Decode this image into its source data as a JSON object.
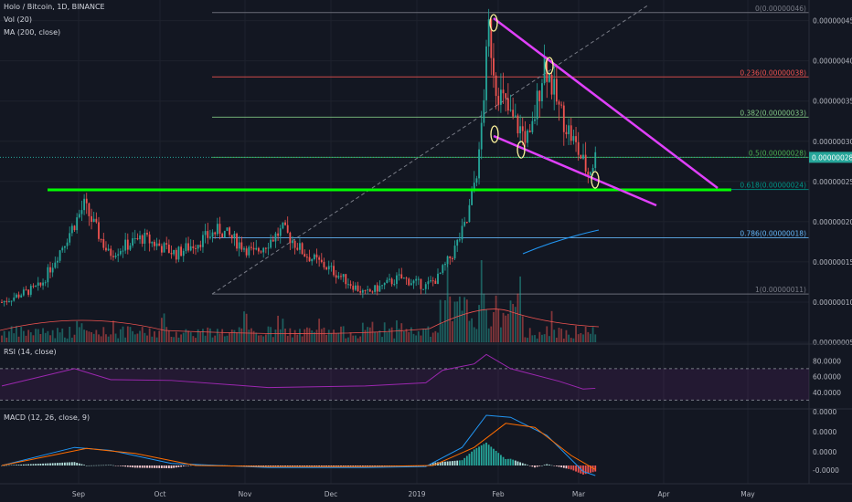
{
  "header": {
    "symbol": "Holo / Bitcoin, 1D, BINANCE",
    "vol": "Vol (20)",
    "ma": "MA (200, close)"
  },
  "rsi_header": "RSI (14, close)",
  "macd_header": "MACD (12, 26, close, 9)",
  "colors": {
    "background": "#131722",
    "up": "#26a69a",
    "down": "#ef5350",
    "fib_guide": "#00ff00",
    "trendline": "#e040fb",
    "rsi": "#9c27b0",
    "macd_line": "#2196f3",
    "signal_line": "#ff6d00",
    "ma": "#2196f3",
    "vol_ma": "#ef5350"
  },
  "chart_data": {
    "type": "candlestick",
    "x_axis": [
      "Sep",
      "Oct",
      "Nov",
      "Dec",
      "2019",
      "Feb",
      "Mar",
      "Apr",
      "May"
    ],
    "price_axis": [
      "0.00000045",
      "0.00000040",
      "0.00000035",
      "0.00000030",
      "0.00000025",
      "0.00000020",
      "0.00000015",
      "0.00000010",
      "0.00000005"
    ],
    "price_range": [
      5e-08,
      4.7e-07
    ],
    "last_price": "0.00000028",
    "fibonacci": [
      {
        "level": "0",
        "label": "0(0.00000046)",
        "price": 4.6e-07
      },
      {
        "level": "0.236",
        "label": "0.236(0.00000038)",
        "price": 3.8e-07
      },
      {
        "level": "0.382",
        "label": "0.382(0.00000033)",
        "price": 3.3e-07
      },
      {
        "level": "0.5",
        "label": "0.5(0.00000028)",
        "price": 2.8e-07
      },
      {
        "level": "0.618",
        "label": "0.618(0.00000024)",
        "price": 2.4e-07
      },
      {
        "level": "0.786",
        "label": "0.786(0.00000018)",
        "price": 1.8e-07
      },
      {
        "level": "1",
        "label": "1(0.00000011)",
        "price": 1.1e-07
      }
    ],
    "price_path": [
      [
        0,
        1e-07
      ],
      [
        16,
        1.2e-07
      ],
      [
        34,
        2.2e-07
      ],
      [
        44,
        1.6e-07
      ],
      [
        58,
        1.8e-07
      ],
      [
        72,
        1.6e-07
      ],
      [
        90,
        1.9e-07
      ],
      [
        104,
        1.6e-07
      ],
      [
        116,
        1.9e-07
      ],
      [
        125,
        1.6e-07
      ],
      [
        136,
        1.4e-07
      ],
      [
        150,
        1.1e-07
      ],
      [
        164,
        1.3e-07
      ],
      [
        175,
        1.2e-07
      ],
      [
        180,
        1.3e-07
      ],
      [
        186,
        1.6e-07
      ],
      [
        192,
        2e-07
      ],
      [
        197,
        2.8e-07
      ],
      [
        201,
        4.4e-07
      ],
      [
        204,
        3.7e-07
      ],
      [
        210,
        3.3e-07
      ],
      [
        218,
        3e-07
      ],
      [
        224,
        4e-07
      ],
      [
        230,
        3.4e-07
      ],
      [
        236,
        3e-07
      ],
      [
        242,
        2.6e-07
      ],
      [
        245,
        2.8e-07
      ]
    ],
    "volume": {
      "axis_max_label": "0.00000005",
      "series": "Vol (20)"
    },
    "rsi": {
      "axis": [
        "80.0000",
        "60.0000",
        "40.0000"
      ],
      "values": [
        [
          0,
          48
        ],
        [
          30,
          70
        ],
        [
          45,
          56
        ],
        [
          70,
          55
        ],
        [
          110,
          46
        ],
        [
          150,
          48
        ],
        [
          175,
          52
        ],
        [
          182,
          68
        ],
        [
          195,
          76
        ],
        [
          200,
          88
        ],
        [
          210,
          70
        ],
        [
          230,
          54
        ],
        [
          240,
          44
        ],
        [
          245,
          45
        ]
      ]
    },
    "macd": {
      "axis": [
        "0.0000",
        "-0.0000"
      ],
      "values": [
        [
          0,
          0
        ],
        [
          30,
          18
        ],
        [
          45,
          15
        ],
        [
          70,
          2
        ],
        [
          110,
          -2
        ],
        [
          150,
          -2
        ],
        [
          175,
          -1
        ],
        [
          190,
          18
        ],
        [
          200,
          50
        ],
        [
          210,
          48
        ],
        [
          225,
          30
        ],
        [
          240,
          -6
        ],
        [
          245,
          -10
        ]
      ],
      "signal": [
        [
          0,
          0
        ],
        [
          35,
          17
        ],
        [
          55,
          12
        ],
        [
          80,
          0
        ],
        [
          110,
          -1
        ],
        [
          150,
          -1
        ],
        [
          178,
          0
        ],
        [
          195,
          18
        ],
        [
          208,
          42
        ],
        [
          220,
          38
        ],
        [
          235,
          10
        ],
        [
          245,
          -4
        ]
      ]
    }
  }
}
